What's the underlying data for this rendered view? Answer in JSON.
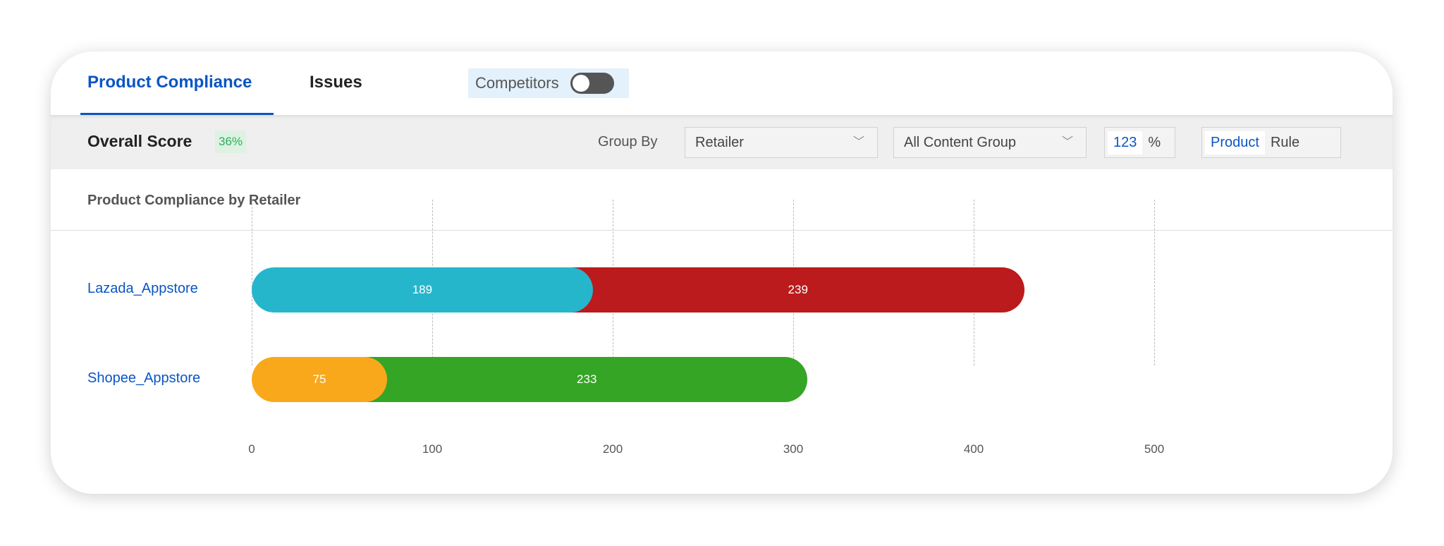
{
  "tabs": {
    "items": [
      {
        "label": "Product Compliance",
        "active": true
      },
      {
        "label": "Issues",
        "active": false
      }
    ],
    "competitors_label": "Competitors",
    "competitors_on": false
  },
  "toolbar": {
    "overall_label": "Overall Score",
    "overall_value": "36%",
    "group_by_label": "Group By",
    "group_by_value": "Retailer",
    "content_group_value": "All Content Group",
    "number_mode": "123",
    "percent_mode": "%",
    "product_mode": "Product",
    "rule_mode": "Rule"
  },
  "chart_title": "Product Compliance by Retailer",
  "chart_data": {
    "type": "bar",
    "orientation": "horizontal",
    "stacked": true,
    "categories": [
      "Lazada_Appstore",
      "Shopee_Appstore"
    ],
    "series": [
      {
        "values": [
          189,
          75
        ],
        "colors": [
          "#26b6cc",
          "#f9a81c"
        ]
      },
      {
        "values": [
          239,
          233
        ],
        "colors": [
          "#bb1b1c",
          "#35a525"
        ]
      }
    ],
    "xticks": [
      "0",
      "100",
      "200",
      "300",
      "400",
      "500"
    ],
    "xlim": [
      0,
      500
    ],
    "grid": true
  }
}
